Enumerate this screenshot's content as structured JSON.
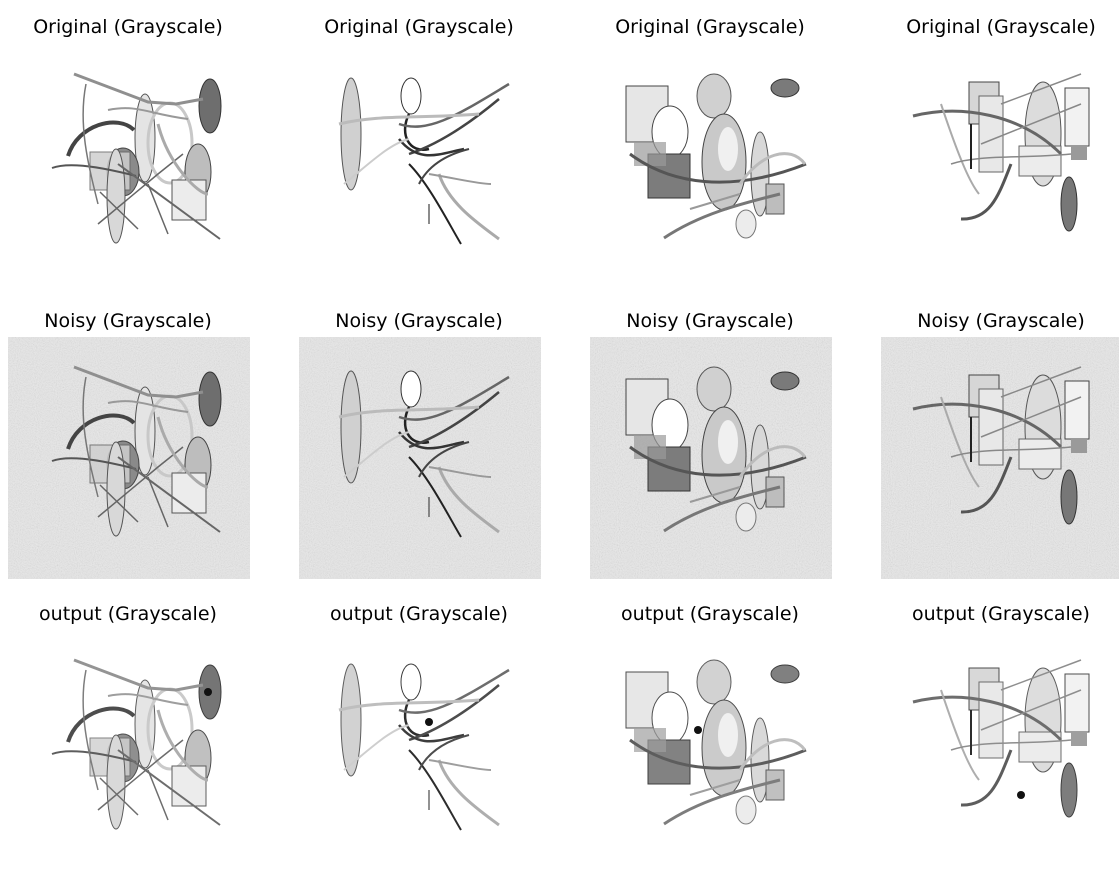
{
  "rows": [
    {
      "id": "original",
      "titles": [
        "Original (Grayscale)",
        "Original (Grayscale)",
        "Original (Grayscale)",
        "Original (Grayscale)"
      ],
      "noise": false,
      "smooth": false
    },
    {
      "id": "noisy",
      "titles": [
        "Noisy (Grayscale)",
        "Noisy (Grayscale)",
        "Noisy (Grayscale)",
        "Noisy (Grayscale)"
      ],
      "noise": true,
      "smooth": false
    },
    {
      "id": "output",
      "titles": [
        "output (Grayscale)",
        "output (Grayscale)",
        "output (Grayscale)",
        "output (Grayscale)"
      ],
      "noise": false,
      "smooth": true
    }
  ],
  "colors": {
    "background": "#ffffff",
    "text": "#000000",
    "noise_base": "#e9e9e9"
  }
}
